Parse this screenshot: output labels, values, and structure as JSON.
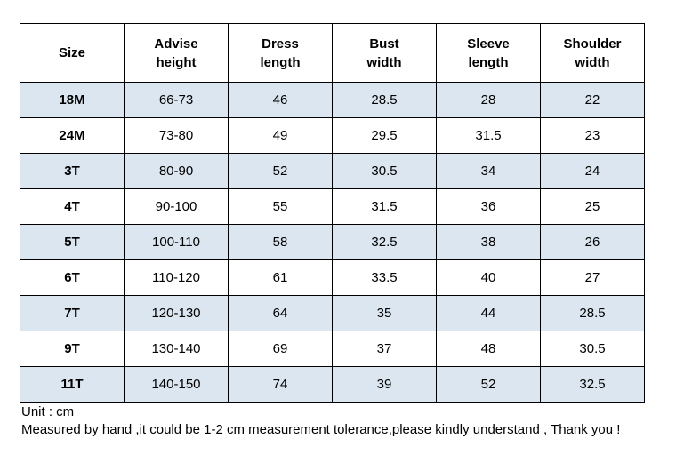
{
  "headers": [
    [
      "Size"
    ],
    [
      "Advise",
      "height"
    ],
    [
      "Dress",
      "length"
    ],
    [
      "Bust",
      "width"
    ],
    [
      "Sleeve",
      "length"
    ],
    [
      "Shoulder",
      "width"
    ]
  ],
  "rows": [
    [
      "18M",
      "66-73",
      "46",
      "28.5",
      "28",
      "22"
    ],
    [
      "24M",
      "73-80",
      "49",
      "29.5",
      "31.5",
      "23"
    ],
    [
      "3T",
      "80-90",
      "52",
      "30.5",
      "34",
      "24"
    ],
    [
      "4T",
      "90-100",
      "55",
      "31.5",
      "36",
      "25"
    ],
    [
      "5T",
      "100-110",
      "58",
      "32.5",
      "38",
      "26"
    ],
    [
      "6T",
      "110-120",
      "61",
      "33.5",
      "40",
      "27"
    ],
    [
      "7T",
      "120-130",
      "64",
      "35",
      "44",
      "28.5"
    ],
    [
      "9T",
      "130-140",
      "69",
      "37",
      "48",
      "30.5"
    ],
    [
      "11T",
      "140-150",
      "74",
      "39",
      "52",
      "32.5"
    ]
  ],
  "notes": {
    "unit": "Unit : cm",
    "disclaimer": "Measured by hand ,it could be 1-2 cm measurement tolerance,please kindly understand , Thank you !"
  },
  "colors": {
    "band": "#dce6f0",
    "border": "#000000"
  }
}
